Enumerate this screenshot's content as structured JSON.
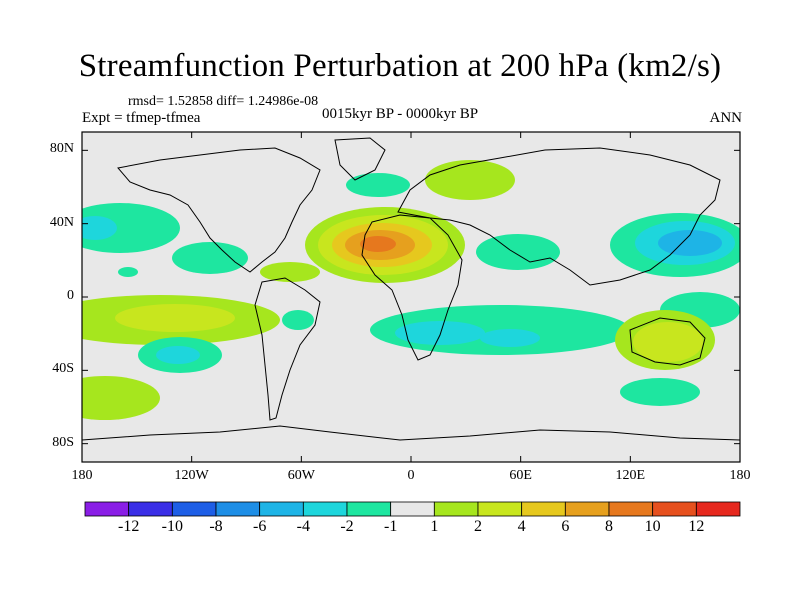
{
  "title": "Streamfunction Perturbation at 200 hPa (km2/s)",
  "stats": "rmsd= 1.52858 diff= 1.24986e-08",
  "experiment": "Expt = tfmep-tfmea",
  "period": "0015kyr BP - 0000kyr BP",
  "season": "ANN",
  "map": {
    "lat_ticks": [
      {
        "value": 80,
        "label": "80N"
      },
      {
        "value": 40,
        "label": "40N"
      },
      {
        "value": 0,
        "label": "0"
      },
      {
        "value": -40,
        "label": "40S"
      },
      {
        "value": -80,
        "label": "80S"
      }
    ],
    "lon_ticks": [
      {
        "value": -180,
        "label": "180"
      },
      {
        "value": -120,
        "label": "120W"
      },
      {
        "value": -60,
        "label": "60W"
      },
      {
        "value": 0,
        "label": "0"
      },
      {
        "value": 60,
        "label": "60E"
      },
      {
        "value": 120,
        "label": "120E"
      },
      {
        "value": 180,
        "label": "180"
      }
    ]
  },
  "colorbar": {
    "colors": [
      "#8a1ee6",
      "#3a2ee6",
      "#1e5ee6",
      "#1e8ee6",
      "#1eb4e6",
      "#1ed6dc",
      "#1ee6a0",
      "#e8e8e8",
      "#a6e61e",
      "#c8e61e",
      "#e6c81e",
      "#e6a01e",
      "#e6781e",
      "#e6501e",
      "#e6281e"
    ],
    "labels": [
      "-12",
      "-10",
      "-8",
      "-6",
      "-4",
      "-2",
      "-1",
      "1",
      "2",
      "4",
      "6",
      "8",
      "10",
      "12"
    ]
  }
}
